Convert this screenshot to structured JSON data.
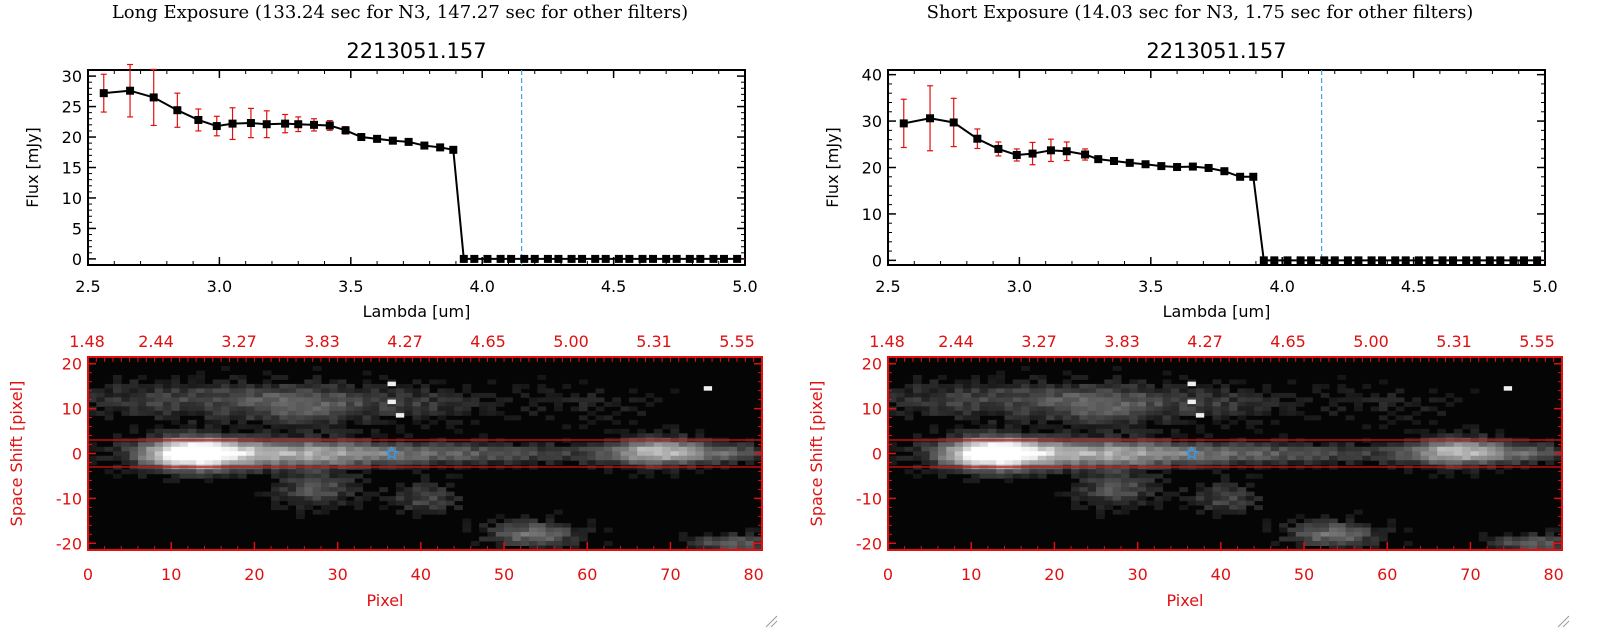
{
  "panels": [
    {
      "exposure_title": "Long Exposure (133.24 sec for N3, 147.27 sec for other filters)",
      "spectrum": {
        "type": "scatter",
        "title": "2213051.157",
        "xlabel": "Lambda [um]",
        "ylabel": "Flux [mJy]",
        "xlim": [
          2.5,
          5.0
        ],
        "ylim": [
          -1,
          31
        ],
        "xticks": [
          2.5,
          3.0,
          3.5,
          4.0,
          4.5,
          5.0
        ],
        "xtick_labels": [
          "2.5",
          "3.0",
          "3.5",
          "4.0",
          "4.5",
          "5.0"
        ],
        "yticks": [
          0,
          5,
          10,
          15,
          20,
          25,
          30
        ],
        "ytick_labels": [
          "0",
          "5",
          "10",
          "15",
          "20",
          "25",
          "30"
        ],
        "marker_line": 4.15,
        "series": [
          {
            "x": [
              2.56,
              2.66,
              2.75,
              2.84,
              2.92,
              2.99,
              3.05,
              3.12,
              3.18,
              3.25,
              3.3,
              3.36,
              3.42,
              3.48,
              3.54,
              3.6,
              3.66,
              3.72,
              3.78,
              3.84,
              3.89,
              3.93,
              3.97,
              4.02,
              4.07,
              4.11,
              4.16,
              4.2,
              4.25,
              4.29,
              4.34,
              4.38,
              4.43,
              4.47,
              4.52,
              4.56,
              4.61,
              4.65,
              4.7,
              4.74,
              4.79,
              4.83,
              4.88,
              4.92,
              4.97
            ],
            "y": [
              27.2,
              27.6,
              26.5,
              24.4,
              22.8,
              21.8,
              22.2,
              22.3,
              22.1,
              22.2,
              22.1,
              22.0,
              21.9,
              21.1,
              20.0,
              19.7,
              19.4,
              19.2,
              18.6,
              18.3,
              17.9,
              0,
              0,
              0,
              0,
              0,
              0,
              0,
              0,
              0,
              0,
              0,
              0,
              0,
              0,
              0,
              0,
              0,
              0,
              0,
              0,
              0,
              0,
              0,
              0
            ],
            "err": [
              3.1,
              4.3,
              4.6,
              2.8,
              1.8,
              1.6,
              2.6,
              2.4,
              2.2,
              1.5,
              1.2,
              1.0,
              0.8,
              0.6,
              0.4,
              0.3,
              0.3,
              0.3,
              0.3,
              0.3,
              0.3,
              0,
              0,
              0,
              0,
              0,
              0,
              0,
              0,
              0,
              0,
              0,
              0,
              0,
              0,
              0,
              0,
              0,
              0,
              0,
              0,
              0,
              0,
              0,
              0
            ]
          }
        ]
      },
      "image": {
        "type": "heatmap",
        "xlabel": "Pixel",
        "ylabel": "Space Shift [pixel]",
        "xlim": [
          0,
          81
        ],
        "ylim": [
          -21.5,
          21.5
        ],
        "xticks": [
          0,
          10,
          20,
          30,
          40,
          50,
          60,
          70,
          80
        ],
        "xtick_labels": [
          "0",
          "10",
          "20",
          "30",
          "40",
          "50",
          "60",
          "70",
          "80"
        ],
        "yticks": [
          -20,
          -10,
          0,
          10,
          20
        ],
        "ytick_labels": [
          "-20",
          "-10",
          "0",
          "10",
          "20"
        ],
        "top_tick_labels": [
          "1.48",
          "2.44",
          "3.27",
          "3.83",
          "4.27",
          "4.65",
          "5.00",
          "5.31",
          "5.55"
        ],
        "aperture": [
          -3,
          3
        ],
        "star_marker": [
          36.5,
          0
        ]
      }
    },
    {
      "exposure_title": "Short Exposure (14.03 sec for N3, 1.75 sec for other filters)",
      "spectrum": {
        "type": "scatter",
        "title": "2213051.157",
        "xlabel": "Lambda [um]",
        "ylabel": "Flux [mJy]",
        "xlim": [
          2.5,
          5.0
        ],
        "ylim": [
          -1,
          41
        ],
        "xticks": [
          2.5,
          3.0,
          3.5,
          4.0,
          4.5,
          5.0
        ],
        "xtick_labels": [
          "2.5",
          "3.0",
          "3.5",
          "4.0",
          "4.5",
          "5.0"
        ],
        "yticks": [
          0,
          10,
          20,
          30,
          40
        ],
        "ytick_labels": [
          "0",
          "10",
          "20",
          "30",
          "40"
        ],
        "marker_line": 4.15,
        "series": [
          {
            "x": [
              2.56,
              2.66,
              2.75,
              2.84,
              2.92,
              2.99,
              3.05,
              3.12,
              3.18,
              3.25,
              3.3,
              3.36,
              3.42,
              3.48,
              3.54,
              3.6,
              3.66,
              3.72,
              3.78,
              3.84,
              3.89,
              3.93,
              3.97,
              4.02,
              4.07,
              4.11,
              4.16,
              4.2,
              4.25,
              4.29,
              4.34,
              4.38,
              4.43,
              4.47,
              4.52,
              4.56,
              4.61,
              4.65,
              4.7,
              4.74,
              4.79,
              4.83,
              4.88,
              4.92,
              4.97
            ],
            "y": [
              29.5,
              30.6,
              29.7,
              26.2,
              24.0,
              22.7,
              23.0,
              23.7,
              23.5,
              22.8,
              21.8,
              21.4,
              21.0,
              20.7,
              20.3,
              20.1,
              20.2,
              19.9,
              19.2,
              18.0,
              18.0,
              0,
              0,
              0,
              0,
              0,
              0,
              0,
              0,
              0,
              0,
              0,
              0,
              0,
              0,
              0,
              0,
              0,
              0,
              0,
              0,
              0,
              0,
              0,
              0
            ],
            "err": [
              5.2,
              7.0,
              5.2,
              2.1,
              1.5,
              1.3,
              2.4,
              2.4,
              2.0,
              1.2,
              0.6,
              0.5,
              0.5,
              0.4,
              0.4,
              0.3,
              0.3,
              0.3,
              0.3,
              0.3,
              0.3,
              0,
              0,
              0,
              0,
              0,
              0,
              0,
              0,
              0,
              0,
              0,
              0,
              0,
              0,
              0,
              0,
              0,
              0,
              0,
              0,
              0,
              0,
              0,
              0
            ]
          }
        ]
      },
      "image": {
        "type": "heatmap",
        "xlabel": "Pixel",
        "ylabel": "Space Shift [pixel]",
        "xlim": [
          0,
          81
        ],
        "ylim": [
          -21.5,
          21.5
        ],
        "xticks": [
          0,
          10,
          20,
          30,
          40,
          50,
          60,
          70,
          80
        ],
        "xtick_labels": [
          "0",
          "10",
          "20",
          "30",
          "40",
          "50",
          "60",
          "70",
          "80"
        ],
        "yticks": [
          -20,
          -10,
          0,
          10,
          20
        ],
        "ytick_labels": [
          "-20",
          "-10",
          "0",
          "10",
          "20"
        ],
        "top_tick_labels": [
          "1.48",
          "2.44",
          "3.27",
          "3.83",
          "4.27",
          "4.65",
          "5.00",
          "5.31",
          "5.55"
        ],
        "aperture": [
          -3,
          3
        ],
        "star_marker": [
          36.5,
          0
        ]
      }
    }
  ],
  "colors": {
    "line": "#000000",
    "marker": "#000000",
    "error_bar": "#e01010",
    "marker_line": "#3aa6e0",
    "image_axes": "#e01010",
    "aperture": "#e01010",
    "star": "#3a9be8",
    "zero_line": "#e01010"
  },
  "chart_data": [
    {
      "type": "scatter",
      "title": "2213051.157",
      "xlabel": "Lambda [um]",
      "ylabel": "Flux [mJy]",
      "xlim": [
        2.5,
        5.0
      ],
      "ylim": [
        -1,
        31
      ],
      "series": [
        {
          "x": [
            2.56,
            2.66,
            2.75,
            2.84,
            2.92,
            2.99,
            3.05,
            3.12,
            3.18,
            3.25,
            3.3,
            3.36,
            3.42,
            3.48,
            3.54,
            3.6,
            3.66,
            3.72,
            3.78,
            3.84,
            3.89,
            3.93
          ],
          "y": [
            27.2,
            27.6,
            26.5,
            24.4,
            22.8,
            21.8,
            22.2,
            22.3,
            22.1,
            22.2,
            22.1,
            22.0,
            21.9,
            21.1,
            20.0,
            19.7,
            19.4,
            19.2,
            18.6,
            18.3,
            17.9,
            0
          ]
        }
      ]
    },
    {
      "type": "heatmap",
      "xlabel": "Pixel",
      "ylabel": "Space Shift [pixel]",
      "xlim": [
        0,
        81
      ],
      "ylim": [
        -21.5,
        21.5
      ]
    },
    {
      "type": "scatter",
      "title": "2213051.157",
      "xlabel": "Lambda [um]",
      "ylabel": "Flux [mJy]",
      "xlim": [
        2.5,
        5.0
      ],
      "ylim": [
        -1,
        41
      ],
      "series": [
        {
          "x": [
            2.56,
            2.66,
            2.75,
            2.84,
            2.92,
            2.99,
            3.05,
            3.12,
            3.18,
            3.25,
            3.3,
            3.36,
            3.42,
            3.48,
            3.54,
            3.6,
            3.66,
            3.72,
            3.78,
            3.84,
            3.89,
            3.93
          ],
          "y": [
            29.5,
            30.6,
            29.7,
            26.2,
            24.0,
            22.7,
            23.0,
            23.7,
            23.5,
            22.8,
            21.8,
            21.4,
            21.0,
            20.7,
            20.3,
            20.1,
            20.2,
            19.9,
            19.2,
            18.0,
            18.0,
            0
          ]
        }
      ]
    },
    {
      "type": "heatmap",
      "xlabel": "Pixel",
      "ylabel": "Space Shift [pixel]",
      "xlim": [
        0,
        81
      ],
      "ylim": [
        -21.5,
        21.5
      ]
    }
  ]
}
